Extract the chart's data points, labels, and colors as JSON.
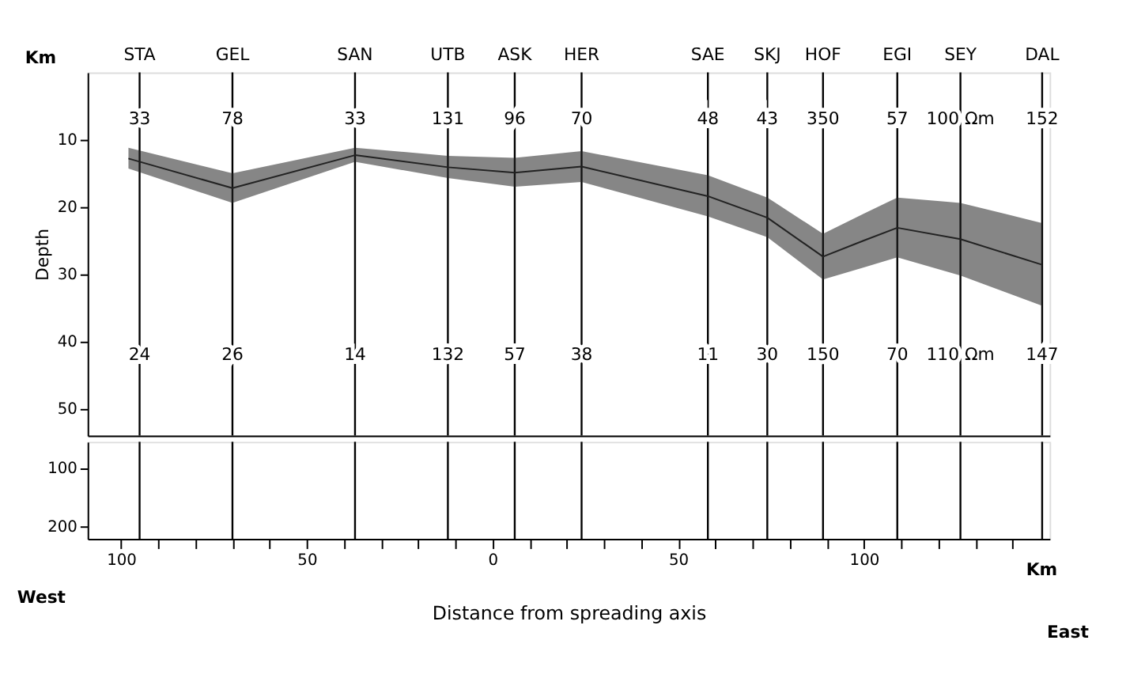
{
  "chart_data": [
    {
      "type": "line",
      "ylabel": "Depth",
      "xlim": [
        -109,
        150
      ],
      "ylim": [
        54,
        0
      ],
      "yticks": [
        10,
        20,
        30,
        40,
        50
      ],
      "tick_labels": "y",
      "grid": false,
      "series": [
        {
          "color": "#222222",
          "x": [
            -98,
            -70,
            -37,
            -12,
            6,
            24,
            58,
            74,
            89,
            100,
            109,
            126,
            148
          ],
          "values": [
            12.8,
            17.2,
            12.3,
            14.1,
            14.9,
            14,
            18.4,
            21.6,
            27.4,
            25,
            23.1,
            24.8,
            28.6
          ],
          "upper": [
            11.2,
            15,
            11.2,
            12.4,
            12.7,
            11.7,
            15.3,
            18.6,
            24,
            21,
            18.6,
            19.4,
            22.4
          ],
          "lower": [
            14.3,
            19.4,
            13.3,
            15.7,
            17,
            16.3,
            21.4,
            24.5,
            30.8,
            29,
            27.5,
            30.2,
            34.7
          ]
        }
      ],
      "ref_lines": [
        {
          "axis": "x",
          "value": -95,
          "label": "STA"
        },
        {
          "axis": "x",
          "value": -70,
          "label": "GEL"
        },
        {
          "axis": "x",
          "value": -37,
          "label": "SAN"
        },
        {
          "axis": "x",
          "value": -12,
          "label": "UTB"
        },
        {
          "axis": "x",
          "value": 6,
          "label": "ASK"
        },
        {
          "axis": "x",
          "value": 24,
          "label": "HER"
        },
        {
          "axis": "x",
          "value": 58,
          "label": "SAE"
        },
        {
          "axis": "x",
          "value": 74,
          "label": "SKJ"
        },
        {
          "axis": "x",
          "value": 89,
          "label": "HOF"
        },
        {
          "axis": "x",
          "value": 109,
          "label": "EGI"
        },
        {
          "axis": "x",
          "value": 126,
          "label": "SEY"
        },
        {
          "axis": "x",
          "value": 148,
          "label": "DAL"
        }
      ],
      "annotations": [
        "Km",
        "33",
        "78",
        "33",
        "131",
        "96",
        "70",
        "48",
        "43",
        "350",
        "57",
        "100 Ωm",
        "152",
        "24",
        "26",
        "14",
        "132",
        "57",
        "38",
        "11",
        "30",
        "150",
        "70",
        "110 Ωm",
        "147"
      ]
    },
    {
      "type": "line",
      "xlabel": "Distance from spreading axis",
      "xlim": [
        -109,
        150
      ],
      "ylim": [
        221,
        56
      ],
      "yticks": [
        100,
        200
      ],
      "xticks": [
        {
          "value": -100,
          "label": "100"
        },
        {
          "value": -90,
          "label": null
        },
        {
          "value": -80,
          "label": null
        },
        {
          "value": -70,
          "label": null
        },
        {
          "value": -60,
          "label": null
        },
        {
          "value": -50,
          "label": "50"
        },
        {
          "value": -40,
          "label": null
        },
        {
          "value": -30,
          "label": null
        },
        {
          "value": -20,
          "label": null
        },
        {
          "value": -10,
          "label": null
        },
        0,
        {
          "value": 10,
          "label": null
        },
        {
          "value": 20,
          "label": null
        },
        {
          "value": 30,
          "label": null
        },
        {
          "value": 40,
          "label": null
        },
        50,
        {
          "value": 60,
          "label": null
        },
        {
          "value": 70,
          "label": null
        },
        {
          "value": 80,
          "label": null
        },
        {
          "value": 90,
          "label": null
        },
        100,
        {
          "value": 110,
          "label": null
        },
        {
          "value": 120,
          "label": null
        },
        {
          "value": 130,
          "label": null
        },
        {
          "value": 140,
          "label": null
        }
      ],
      "grid": false,
      "ref_lines": [
        {
          "axis": "x",
          "value": -95
        },
        {
          "axis": "x",
          "value": -70
        },
        {
          "axis": "x",
          "value": -37
        },
        {
          "axis": "x",
          "value": -12
        },
        {
          "axis": "x",
          "value": 6
        },
        {
          "axis": "x",
          "value": 24
        },
        {
          "axis": "x",
          "value": 58
        },
        {
          "axis": "x",
          "value": 74
        },
        {
          "axis": "x",
          "value": 89
        },
        {
          "axis": "x",
          "value": 109
        },
        {
          "axis": "x",
          "value": 126
        },
        {
          "axis": "x",
          "value": 148
        }
      ],
      "annotations": [
        "West",
        "East",
        "Km"
      ]
    }
  ]
}
